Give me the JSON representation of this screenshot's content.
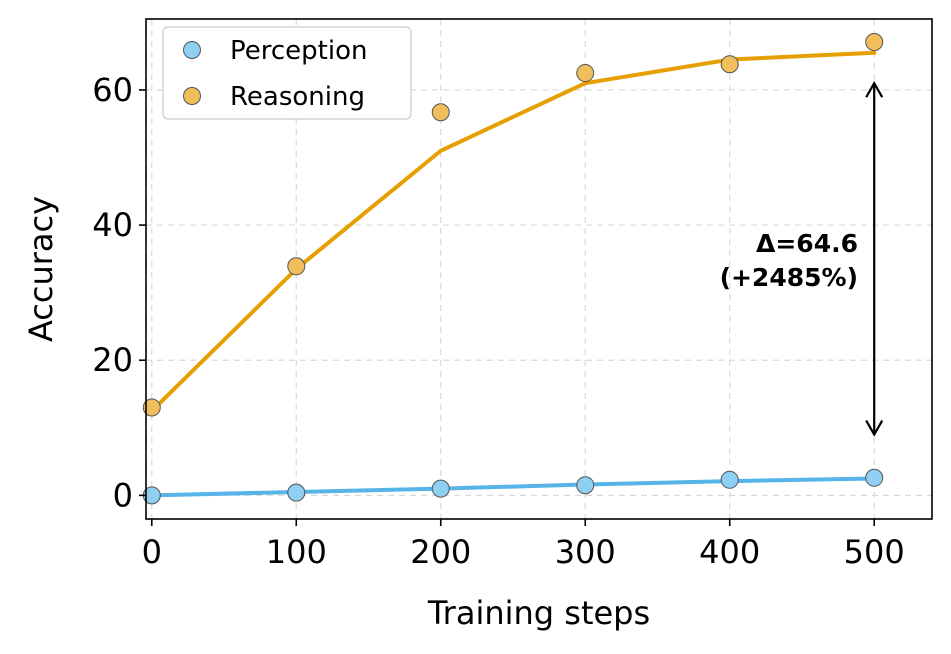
{
  "chart_data": {
    "type": "line",
    "xlabel": "Training steps",
    "ylabel": "Accuracy",
    "xlim": [
      -4,
      540
    ],
    "ylim": [
      -3.5,
      70.5
    ],
    "xticks": [
      0,
      100,
      200,
      300,
      400,
      500
    ],
    "yticks": [
      0,
      20,
      40,
      60
    ],
    "grid": true,
    "legend_position": "upper-left",
    "series": [
      {
        "name": "Perception",
        "color": "#56b4e9",
        "marker_color": "#8ecff2",
        "points": {
          "x": [
            0,
            100,
            200,
            300,
            400,
            500
          ],
          "y": [
            0.0,
            0.4,
            1.0,
            1.5,
            2.3,
            2.6
          ]
        },
        "fit": {
          "x": [
            0,
            100,
            200,
            300,
            400,
            500
          ],
          "y": [
            0.0,
            0.5,
            1.0,
            1.6,
            2.1,
            2.5
          ]
        }
      },
      {
        "name": "Reasoning",
        "color": "#e69f00",
        "marker_color": "#f0be5a",
        "points": {
          "x": [
            0,
            100,
            200,
            300,
            400,
            500
          ],
          "y": [
            13.0,
            33.9,
            56.7,
            62.5,
            63.8,
            67.1
          ]
        },
        "fit": {
          "x": [
            0,
            100,
            200,
            300,
            400,
            500
          ],
          "y": [
            12.5,
            33.5,
            51.0,
            61.0,
            64.5,
            65.5
          ]
        }
      }
    ],
    "annotation": {
      "line1": "Δ=64.6",
      "line2": "(+2485%)",
      "arrow_x": 500,
      "arrow_from_y": 61.0,
      "arrow_to_y": 9.0
    }
  }
}
